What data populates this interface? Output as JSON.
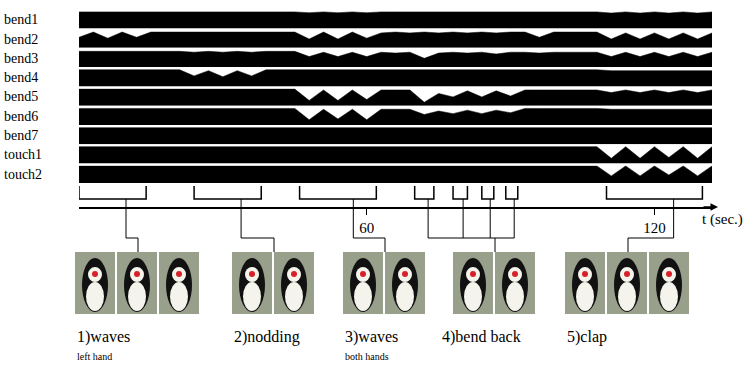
{
  "chart_data": {
    "type": "line",
    "x_label": "t (sec.)",
    "xlim": [
      0,
      132
    ],
    "xticks": [
      60,
      120
    ],
    "ylim": [
      0,
      1
    ],
    "tick_labels": "x",
    "grid": false,
    "x": [
      0,
      3,
      6,
      9,
      12,
      15,
      18,
      21,
      24,
      27,
      30,
      33,
      36,
      39,
      42,
      45,
      48,
      51,
      54,
      57,
      60,
      63,
      66,
      69,
      72,
      75,
      78,
      81,
      84,
      87,
      90,
      93,
      96,
      99,
      102,
      105,
      108,
      111,
      114,
      117,
      120,
      123,
      126,
      129,
      132
    ],
    "series": [
      {
        "name": "bend1",
        "color": "#000000",
        "values": [
          0.95,
          0.95,
          0.95,
          0.95,
          0.95,
          0.95,
          0.95,
          0.95,
          0.95,
          0.95,
          0.95,
          0.95,
          0.95,
          0.95,
          0.95,
          0.95,
          0.9,
          0.95,
          0.9,
          0.95,
          0.9,
          0.95,
          0.95,
          0.95,
          0.95,
          0.95,
          0.95,
          0.95,
          0.95,
          0.95,
          0.95,
          0.95,
          0.95,
          0.95,
          0.95,
          0.95,
          0.95,
          0.88,
          0.95,
          0.88,
          0.95,
          0.88,
          0.95,
          0.88,
          0.95
        ]
      },
      {
        "name": "bend2",
        "color": "#000000",
        "values": [
          0.6,
          0.9,
          0.55,
          0.9,
          0.6,
          0.9,
          0.9,
          0.9,
          0.9,
          0.9,
          0.9,
          0.9,
          0.9,
          0.9,
          0.9,
          0.9,
          0.5,
          0.9,
          0.5,
          0.9,
          0.55,
          0.85,
          0.9,
          0.85,
          0.9,
          0.85,
          0.9,
          0.85,
          0.9,
          0.85,
          0.9,
          0.9,
          0.6,
          0.9,
          0.9,
          0.9,
          0.9,
          0.5,
          0.85,
          0.5,
          0.85,
          0.5,
          0.85,
          0.5,
          0.85
        ]
      },
      {
        "name": "bend3",
        "color": "#000000",
        "values": [
          0.9,
          0.9,
          0.9,
          0.9,
          0.9,
          0.9,
          0.9,
          0.9,
          0.85,
          0.9,
          0.85,
          0.9,
          0.85,
          0.9,
          0.9,
          0.9,
          0.6,
          0.85,
          0.6,
          0.85,
          0.6,
          0.85,
          0.8,
          0.85,
          0.5,
          0.8,
          0.85,
          0.8,
          0.85,
          0.75,
          0.85,
          0.85,
          0.8,
          0.85,
          0.85,
          0.85,
          0.85,
          0.6,
          0.85,
          0.6,
          0.85,
          0.6,
          0.85,
          0.6,
          0.85
        ]
      },
      {
        "name": "bend4",
        "color": "#000000",
        "values": [
          0.95,
          0.95,
          0.95,
          0.95,
          0.95,
          0.95,
          0.95,
          0.95,
          0.6,
          0.9,
          0.55,
          0.9,
          0.6,
          0.95,
          0.95,
          0.95,
          0.95,
          0.95,
          0.95,
          0.95,
          0.95,
          0.95,
          0.95,
          0.95,
          0.95,
          0.95,
          0.95,
          0.95,
          0.95,
          0.95,
          0.95,
          0.95,
          0.95,
          0.95,
          0.95,
          0.95,
          0.95,
          0.9,
          0.9,
          0.9,
          0.9,
          0.9,
          0.9,
          0.9,
          0.9
        ]
      },
      {
        "name": "bend5",
        "color": "#000000",
        "values": [
          0.95,
          0.95,
          0.95,
          0.95,
          0.95,
          0.95,
          0.95,
          0.95,
          0.95,
          0.95,
          0.95,
          0.95,
          0.95,
          0.95,
          0.95,
          0.95,
          0.3,
          0.9,
          0.3,
          0.9,
          0.35,
          0.9,
          0.9,
          0.9,
          0.2,
          0.7,
          0.5,
          0.85,
          0.5,
          0.85,
          0.55,
          0.9,
          0.9,
          0.9,
          0.9,
          0.9,
          0.9,
          0.75,
          0.9,
          0.75,
          0.9,
          0.75,
          0.9,
          0.75,
          0.9
        ]
      },
      {
        "name": "bend6",
        "color": "#000000",
        "values": [
          0.95,
          0.95,
          0.95,
          0.95,
          0.95,
          0.95,
          0.95,
          0.95,
          0.95,
          0.95,
          0.95,
          0.95,
          0.95,
          0.95,
          0.95,
          0.95,
          0.3,
          0.9,
          0.35,
          0.9,
          0.3,
          0.9,
          0.9,
          0.9,
          0.6,
          0.8,
          0.65,
          0.85,
          0.65,
          0.85,
          0.7,
          0.95,
          0.95,
          0.95,
          0.95,
          0.95,
          0.95,
          0.9,
          0.9,
          0.9,
          0.9,
          0.9,
          0.9,
          0.9,
          0.9
        ]
      },
      {
        "name": "bend7",
        "color": "#000000",
        "values": [
          0.95,
          0.95,
          0.95,
          0.95,
          0.95,
          0.95,
          0.95,
          0.95,
          0.95,
          0.95,
          0.95,
          0.95,
          0.95,
          0.95,
          0.95,
          0.95,
          0.95,
          0.95,
          0.95,
          0.95,
          0.95,
          0.95,
          0.95,
          0.95,
          0.95,
          0.95,
          0.95,
          0.95,
          0.95,
          0.95,
          0.95,
          0.95,
          0.95,
          0.95,
          0.95,
          0.95,
          0.95,
          0.95,
          0.95,
          0.95,
          0.95,
          0.95,
          0.95,
          0.95,
          0.95
        ]
      },
      {
        "name": "touch1",
        "color": "#000000",
        "values": [
          0.97,
          0.97,
          0.97,
          0.97,
          0.97,
          0.97,
          0.97,
          0.97,
          0.97,
          0.97,
          0.97,
          0.97,
          0.97,
          0.97,
          0.97,
          0.97,
          0.97,
          0.97,
          0.97,
          0.97,
          0.97,
          0.97,
          0.97,
          0.97,
          0.97,
          0.97,
          0.97,
          0.97,
          0.97,
          0.97,
          0.97,
          0.97,
          0.97,
          0.97,
          0.97,
          0.97,
          0.97,
          0.3,
          0.97,
          0.3,
          0.97,
          0.35,
          0.97,
          0.3,
          0.97
        ]
      },
      {
        "name": "touch2",
        "color": "#000000",
        "values": [
          0.97,
          0.97,
          0.97,
          0.97,
          0.97,
          0.97,
          0.97,
          0.97,
          0.97,
          0.97,
          0.97,
          0.97,
          0.97,
          0.97,
          0.97,
          0.97,
          0.97,
          0.97,
          0.97,
          0.97,
          0.97,
          0.97,
          0.97,
          0.97,
          0.97,
          0.97,
          0.97,
          0.97,
          0.97,
          0.97,
          0.97,
          0.97,
          0.97,
          0.97,
          0.97,
          0.97,
          0.97,
          0.4,
          0.97,
          0.4,
          0.97,
          0.45,
          0.97,
          0.4,
          0.97
        ]
      }
    ],
    "gestures": [
      {
        "label": "1)waves",
        "sublabel": "left hand",
        "ranges": [
          [
            0,
            14
          ]
        ]
      },
      {
        "label": "2)nodding",
        "ranges": [
          [
            24,
            38
          ]
        ]
      },
      {
        "label": "3)waves",
        "sublabel": "both hands",
        "ranges": [
          [
            46,
            62
          ]
        ]
      },
      {
        "label": "4)bend back",
        "ranges": [
          [
            70,
            74
          ],
          [
            78,
            81
          ],
          [
            84,
            86.5
          ],
          [
            89,
            91.5
          ]
        ]
      },
      {
        "label": "5)clap",
        "ranges": [
          [
            110,
            130
          ]
        ]
      }
    ]
  }
}
